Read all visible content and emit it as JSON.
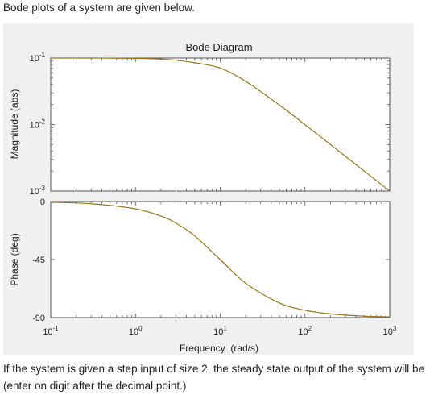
{
  "question": {
    "intro": "Bode plots of a system are given below.",
    "prompt": "If the system is given a step input of size 2, the steady state output of the system will be (enter on digit after the decimal point.)"
  },
  "colors": {
    "curve": "#9c7418",
    "figure_background": "#f0f0f0",
    "axes_background": "#ffffff"
  },
  "chart_data": {
    "type": "line",
    "title": "Bode Diagram",
    "xlabel": "Frequency  (rad/s)",
    "x_scale": "log",
    "xlim": [
      0.1,
      1000
    ],
    "x_ticks": [
      0.1,
      1,
      10,
      100,
      1000
    ],
    "x_tick_labels": [
      {
        "base": "10",
        "exp": "-1"
      },
      {
        "base": "10",
        "exp": "0"
      },
      {
        "base": "10",
        "exp": "1"
      },
      {
        "base": "10",
        "exp": "2"
      },
      {
        "base": "10",
        "exp": "3"
      }
    ],
    "grid": false,
    "legend": "none",
    "magnitude": {
      "ylabel": "Magnitude (abs)",
      "y_scale": "log",
      "ylim": [
        0.001,
        0.1
      ],
      "y_ticks": [
        0.1,
        0.01,
        0.001
      ],
      "y_tick_labels": [
        {
          "base": "10",
          "exp": "-1"
        },
        {
          "base": "10",
          "exp": "-2"
        },
        {
          "base": "10",
          "exp": "-3"
        }
      ],
      "series": [
        {
          "x": [
            0.1,
            0.3,
            1,
            2,
            3,
            5,
            10,
            20,
            50,
            100,
            200,
            500,
            1000
          ],
          "y": [
            0.1,
            0.1,
            0.099,
            0.0966,
            0.0928,
            0.0849,
            0.0707,
            0.0447,
            0.0196,
            0.00995,
            0.005,
            0.002,
            0.001
          ]
        }
      ]
    },
    "phase": {
      "ylabel": "Phase (deg)",
      "ylim": [
        -90,
        0
      ],
      "y_ticks": [
        0,
        -45,
        -90
      ],
      "y_tick_labels": [
        "0",
        "-45",
        "-90"
      ],
      "series": [
        {
          "x": [
            0.1,
            0.3,
            1,
            2,
            3,
            5,
            10,
            20,
            50,
            100,
            200,
            500,
            1000
          ],
          "y": [
            -0.6,
            -1.7,
            -5.7,
            -11.3,
            -16.7,
            -26.6,
            -45,
            -63.4,
            -78.7,
            -84.3,
            -87.1,
            -88.9,
            -89.4
          ]
        }
      ]
    }
  }
}
